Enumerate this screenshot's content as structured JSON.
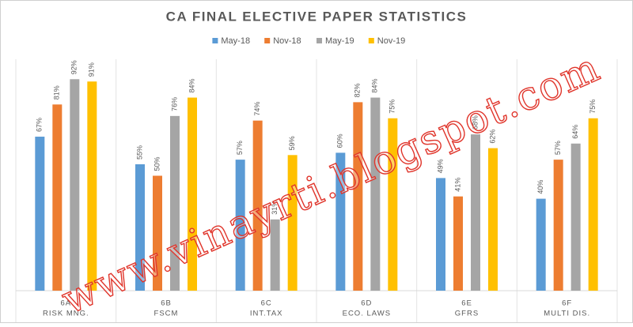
{
  "chart_data": {
    "type": "bar",
    "title": "CA FINAL ELECTIVE PAPER STATISTICS",
    "category_codes": [
      "6A",
      "6B",
      "6C",
      "6D",
      "6E",
      "6F"
    ],
    "categories": [
      "RISK MNG.",
      "FSCM",
      "INT.TAX",
      "ECO. LAWS",
      "GFRS",
      "MULTI DIS."
    ],
    "series": [
      {
        "name": "May-18",
        "color": "#5b9bd5",
        "values": [
          67,
          55,
          57,
          60,
          49,
          40
        ],
        "value_labels": [
          "67%",
          "55%",
          "57%",
          "60%",
          "49%",
          "40%"
        ]
      },
      {
        "name": "Nov-18",
        "color": "#ed7d31",
        "values": [
          81,
          50,
          74,
          82,
          41,
          57
        ],
        "value_labels": [
          "81%",
          "50%",
          "74%",
          "82%",
          "41%",
          "57%"
        ]
      },
      {
        "name": "May-19",
        "color": "#a5a5a5",
        "values": [
          92,
          76,
          31,
          84,
          68,
          64
        ],
        "value_labels": [
          "92%",
          "76%",
          "31%",
          "84%",
          "68%",
          "64%"
        ]
      },
      {
        "name": "Nov-19",
        "color": "#ffc000",
        "values": [
          91,
          84,
          59,
          75,
          62,
          75
        ],
        "value_labels": [
          "91%",
          "84%",
          "59%",
          "75%",
          "62%",
          "75%"
        ]
      }
    ],
    "ylim": [
      0,
      100
    ],
    "legend": "top",
    "watermark": "www.vinayrti.blogspot.com"
  }
}
